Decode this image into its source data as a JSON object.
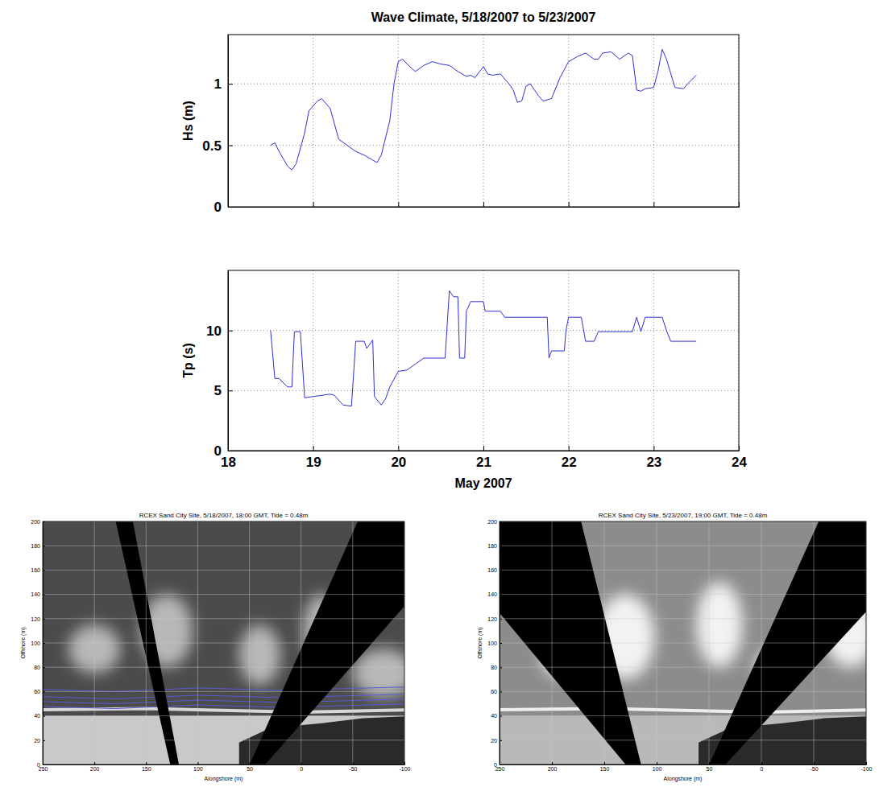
{
  "chart_data": [
    {
      "type": "line",
      "title": "Wave Climate, 5/18/2007 to 5/23/2007",
      "ylabel": "Hs (m)",
      "x": [
        18.5,
        18.55,
        18.6,
        18.7,
        18.75,
        18.8,
        18.9,
        18.95,
        19.05,
        19.1,
        19.2,
        19.3,
        19.4,
        19.5,
        19.6,
        19.7,
        19.75,
        19.8,
        19.9,
        19.95,
        20.0,
        20.05,
        20.15,
        20.2,
        20.3,
        20.4,
        20.5,
        20.6,
        20.7,
        20.8,
        20.85,
        20.9,
        21.0,
        21.05,
        21.1,
        21.2,
        21.3,
        21.35,
        21.4,
        21.45,
        21.5,
        21.55,
        21.6,
        21.65,
        21.7,
        21.8,
        21.9,
        22.0,
        22.1,
        22.2,
        22.3,
        22.35,
        22.4,
        22.5,
        22.6,
        22.7,
        22.75,
        22.8,
        22.85,
        22.9,
        23.0,
        23.05,
        23.1,
        23.15,
        23.25,
        23.35,
        23.4,
        23.5
      ],
      "values": [
        0.5,
        0.52,
        0.45,
        0.33,
        0.3,
        0.35,
        0.6,
        0.78,
        0.86,
        0.88,
        0.8,
        0.55,
        0.5,
        0.45,
        0.42,
        0.38,
        0.36,
        0.42,
        0.7,
        1.0,
        1.18,
        1.2,
        1.13,
        1.1,
        1.15,
        1.18,
        1.16,
        1.15,
        1.1,
        1.06,
        1.07,
        1.05,
        1.14,
        1.08,
        1.07,
        1.08,
        1.0,
        0.95,
        0.85,
        0.86,
        0.98,
        1.0,
        0.95,
        0.9,
        0.86,
        0.88,
        1.05,
        1.18,
        1.22,
        1.25,
        1.2,
        1.2,
        1.25,
        1.26,
        1.2,
        1.25,
        1.23,
        0.95,
        0.94,
        0.96,
        0.97,
        1.1,
        1.28,
        1.2,
        0.97,
        0.96,
        1.0,
        1.07
      ],
      "color": "#2f2fd6",
      "xlim": [
        18,
        24
      ],
      "xticks": [
        18,
        19,
        20,
        21,
        22,
        23,
        24
      ],
      "ylim": [
        0,
        1.4
      ],
      "yticks": [
        0,
        0.5,
        1
      ],
      "grid": true,
      "tick_labels": "y"
    },
    {
      "type": "line",
      "ylabel": "Tp (s)",
      "xlabel": "May 2007",
      "x": [
        18.5,
        18.55,
        18.6,
        18.7,
        18.75,
        18.78,
        18.85,
        18.9,
        19.0,
        19.2,
        19.25,
        19.35,
        19.45,
        19.5,
        19.6,
        19.63,
        19.7,
        19.72,
        19.8,
        19.85,
        19.9,
        20.0,
        20.1,
        20.2,
        20.3,
        20.4,
        20.55,
        20.6,
        20.65,
        20.7,
        20.72,
        20.78,
        20.8,
        20.85,
        21.0,
        21.02,
        21.2,
        21.25,
        21.75,
        21.77,
        21.8,
        21.95,
        21.97,
        22.0,
        22.15,
        22.2,
        22.3,
        22.35,
        22.75,
        22.8,
        22.85,
        22.9,
        23.1,
        23.15,
        23.2,
        23.5
      ],
      "values": [
        10,
        6,
        6,
        5.3,
        5.3,
        9.9,
        9.9,
        4.4,
        4.5,
        4.7,
        4.6,
        3.8,
        3.7,
        9.1,
        9.1,
        8.5,
        9.2,
        4.5,
        3.8,
        4.3,
        5.3,
        6.6,
        6.7,
        7.2,
        7.7,
        7.7,
        7.7,
        13.3,
        12.8,
        12.8,
        7.7,
        7.7,
        11.6,
        12.4,
        12.4,
        11.6,
        11.6,
        11.1,
        11.1,
        7.7,
        8.3,
        8.3,
        10,
        11.1,
        11.1,
        9.1,
        9.1,
        9.9,
        9.9,
        11.1,
        9.9,
        11.1,
        11.1,
        10,
        9.1,
        9.1
      ],
      "color": "#2f2fd6",
      "xlim": [
        18,
        24
      ],
      "xticks": [
        18,
        19,
        20,
        21,
        22,
        23,
        24
      ],
      "ylim": [
        0,
        15
      ],
      "yticks": [
        0,
        5,
        10
      ],
      "grid": true
    },
    {
      "type": "image",
      "title": "RCEX Sand City Site, 5/18/2007, 18:00 GMT, Tide = 0.48m",
      "xlabel": "Alongshore (m)",
      "ylabel": "Offshore (m)",
      "xlim": [
        250,
        -100
      ],
      "xticks": [
        250,
        200,
        150,
        100,
        50,
        0,
        -50,
        -100
      ],
      "ylim": [
        0,
        200
      ],
      "yticks": [
        0,
        20,
        40,
        60,
        80,
        100,
        120,
        140,
        160,
        180,
        200
      ],
      "grid": true
    },
    {
      "type": "image",
      "title": "RCEX Sand City Site, 5/23/2007, 19:00 GMT, Tide = 0.48m",
      "xlabel": "Alongshore (m)",
      "ylabel": "Offshore (m)",
      "xlim": [
        250,
        -100
      ],
      "xticks": [
        250,
        200,
        150,
        100,
        50,
        0,
        -50,
        -100
      ],
      "ylim": [
        0,
        200
      ],
      "yticks": [
        0,
        20,
        40,
        60,
        80,
        100,
        120,
        140,
        160,
        180,
        200
      ],
      "grid": true
    }
  ]
}
